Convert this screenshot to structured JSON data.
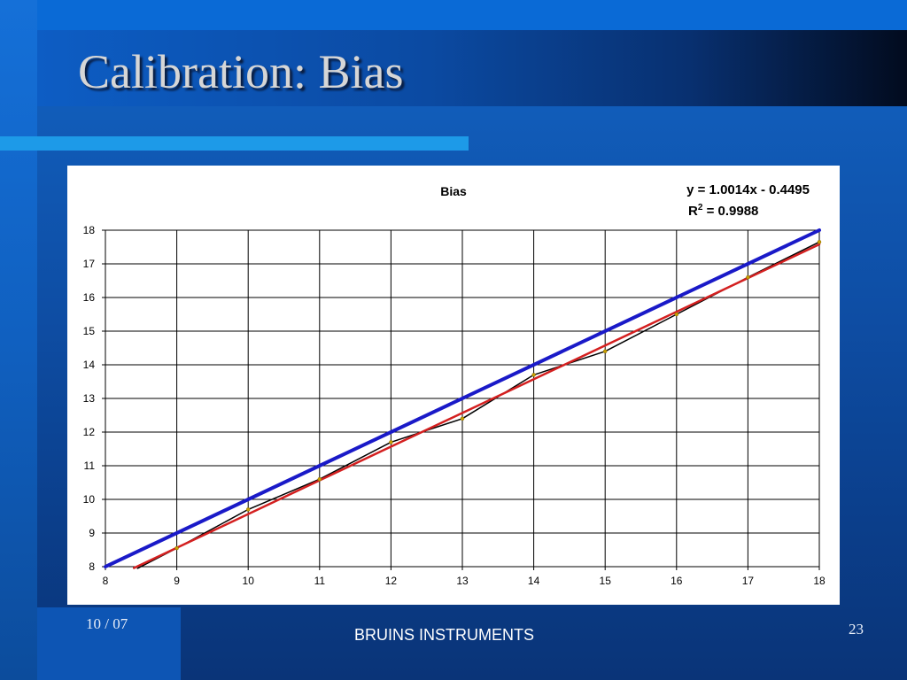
{
  "slide": {
    "title": "Calibration: Bias",
    "footer_date": "10 / 07",
    "footer_center": "BRUINS INSTRUMENTS",
    "page_number": "23"
  },
  "chart_data": {
    "type": "line",
    "title": "Bias",
    "annotations": [
      "y = 1.0014x - 0.4495",
      "R",
      "2",
      " = 0.9988"
    ],
    "xlim": [
      8,
      18
    ],
    "ylim": [
      8,
      18
    ],
    "x_ticks": [
      "8",
      "9",
      "10",
      "11",
      "12",
      "13",
      "14",
      "15",
      "16",
      "17",
      "18"
    ],
    "y_ticks": [
      "8",
      "9",
      "10",
      "11",
      "12",
      "13",
      "14",
      "15",
      "16",
      "17",
      "18"
    ],
    "grid": true,
    "series": [
      {
        "color": "#1a1ac8",
        "x": [
          8,
          18
        ],
        "y": [
          8,
          18
        ]
      },
      {
        "color": "#000000",
        "x": [
          8.45,
          9,
          10,
          11,
          12,
          13,
          14,
          15,
          16,
          17,
          18
        ],
        "y": [
          7.95,
          8.55,
          9.7,
          10.6,
          11.7,
          12.4,
          13.7,
          14.4,
          15.5,
          16.6,
          17.65
        ]
      },
      {
        "color": "#d42020",
        "x": [
          8.4,
          18
        ],
        "y": [
          7.96,
          17.58
        ]
      }
    ]
  }
}
